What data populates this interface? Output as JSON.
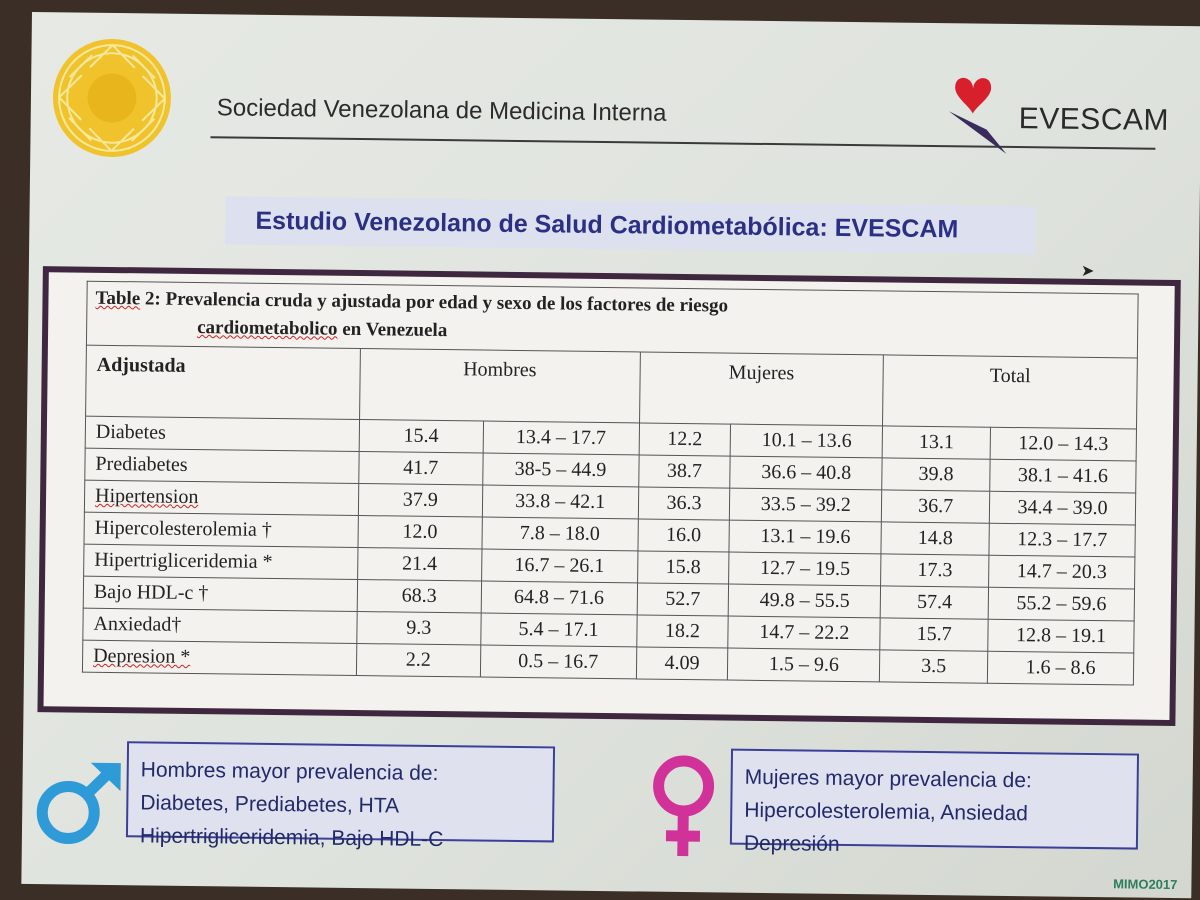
{
  "header": {
    "society": "Sociedad Venezolana de Medicina Interna",
    "logo_text": "EVESCAM"
  },
  "study_title": "Estudio Venezolano de  Salud Cardiometabólica: EVESCAM",
  "table": {
    "caption_prefix": "Table",
    "caption_num": " 2:  Prevalencia cruda y ajustada por edad y sexo de los factores de riesgo",
    "caption_word": "cardiometabolico",
    "caption_end": " en Venezuela",
    "col_adjusted": "Adjustada",
    "groups": [
      "Hombres",
      "Mujeres",
      "Total"
    ],
    "rows": [
      {
        "label": "Diabetes",
        "h": "15.4",
        "h_ci": "13.4 – 17.7",
        "m": "12.2",
        "m_ci": "10.1 – 13.6",
        "t": "13.1",
        "t_ci": "12.0 – 14.3"
      },
      {
        "label": "Prediabetes",
        "h": "41.7",
        "h_ci": "38-5 – 44.9",
        "m": "38.7",
        "m_ci": "36.6 – 40.8",
        "t": "39.8",
        "t_ci": "38.1 – 41.6"
      },
      {
        "label": "Hipertension",
        "h": "37.9",
        "h_ci": "33.8 – 42.1",
        "m": "36.3",
        "m_ci": "33.5 – 39.2",
        "t": "36.7",
        "t_ci": "34.4 – 39.0"
      },
      {
        "label": "Hipercolesterolemia †",
        "h": "12.0",
        "h_ci": "7.8 – 18.0",
        "m": "16.0",
        "m_ci": "13.1 – 19.6",
        "t": "14.8",
        "t_ci": "12.3 – 17.7"
      },
      {
        "label": "Hipertrigliceridemia *",
        "h": "21.4",
        "h_ci": "16.7 – 26.1",
        "m": "15.8",
        "m_ci": "12.7 – 19.5",
        "t": "17.3",
        "t_ci": "14.7 – 20.3"
      },
      {
        "label": "Bajo HDL-c †",
        "h": "68.3",
        "h_ci": "64.8 – 71.6",
        "m": "52.7",
        "m_ci": "49.8 – 55.5",
        "t": "57.4",
        "t_ci": "55.2 – 59.6"
      },
      {
        "label": "Anxiedad†",
        "h": "9.3",
        "h_ci": "5.4 – 17.1",
        "m": "18.2",
        "m_ci": "14.7 – 22.2",
        "t": "15.7",
        "t_ci": "12.8 – 19.1"
      },
      {
        "label": "Depresion *",
        "h": "2.2",
        "h_ci": "0.5 – 16.7",
        "m": "4.09",
        "m_ci": "1.5 – 9.6",
        "t": "3.5",
        "t_ci": "1.6 – 8.6"
      }
    ]
  },
  "men_box": [
    "Hombres mayor prevalencia de:",
    "Diabetes, Prediabetes, HTA",
    "Hipertrigliceridemia, Bajo HDL-C"
  ],
  "women_box": [
    "Mujeres mayor prevalencia de:",
    "Hipercolesterolemia, Ansiedad",
    "Depresión"
  ],
  "footer_mark": "MIMO2017",
  "colors": {
    "title_blue": "#2b2f86",
    "frame": "#3f2740",
    "box_border": "#3b3f9a",
    "male": "#2f9ad8",
    "female": "#d0329a",
    "logo_yellow": "#f0c22c"
  }
}
